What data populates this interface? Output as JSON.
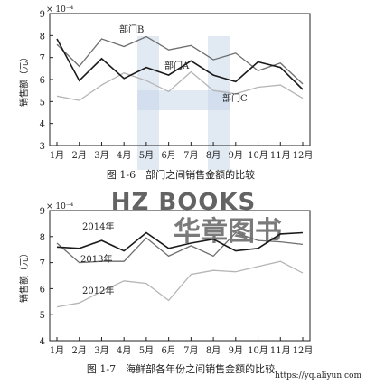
{
  "watermark": {
    "brand": "HZ BOOKS",
    "chinese": "华章图书",
    "url": "https://yq.aliyun.com"
  },
  "colors": {
    "dark": "#1a1a1a",
    "mid": "#6e6e6e",
    "light": "#b5b5b5",
    "watermark": "#c9d7ea"
  },
  "chart_data": [
    {
      "type": "line",
      "title": "图 1-6　部门之间销售金额的比较",
      "ylabel": "销售额（元）",
      "yexponent": "× 10⁻⁴",
      "ylim": [
        3,
        9
      ],
      "yticks": [
        "3",
        "4",
        "5",
        "6",
        "7",
        "8",
        "9"
      ],
      "categories": [
        "1月",
        "2月",
        "3月",
        "4月",
        "5月",
        "6月",
        "7月",
        "8月",
        "9月",
        "10月",
        "11月",
        "12月"
      ],
      "series": [
        {
          "name": "部门A",
          "color": "#1a1a1a",
          "values": [
            7.85,
            5.95,
            6.95,
            6.05,
            6.55,
            6.2,
            6.85,
            6.2,
            5.9,
            6.8,
            6.55,
            5.55
          ]
        },
        {
          "name": "部门B",
          "color": "#6e6e6e",
          "values": [
            7.6,
            6.6,
            7.85,
            7.5,
            7.95,
            7.35,
            7.55,
            6.9,
            7.2,
            6.4,
            6.75,
            5.8
          ]
        },
        {
          "name": "部门C",
          "color": "#b5b5b5",
          "values": [
            5.25,
            5.05,
            5.75,
            6.3,
            5.95,
            5.45,
            6.35,
            5.5,
            5.35,
            5.65,
            5.75,
            5.15
          ]
        }
      ],
      "annotations": [
        "部门B",
        "部门A",
        "部门C"
      ]
    },
    {
      "type": "line",
      "title": "图 1-7　海鲜部各年份之间销售金额的比较",
      "ylabel": "销售额（元）",
      "yexponent": "× 10⁻⁴",
      "ylim": [
        4,
        9
      ],
      "yticks": [
        "4",
        "5",
        "6",
        "7",
        "8",
        "9"
      ],
      "categories": [
        "1月",
        "2月",
        "3月",
        "4月",
        "5月",
        "6月",
        "7月",
        "8月",
        "9月",
        "10月",
        "11月",
        "12月"
      ],
      "series": [
        {
          "name": "2014年",
          "color": "#1a1a1a",
          "values": [
            7.6,
            7.55,
            7.85,
            7.45,
            8.15,
            7.55,
            7.75,
            7.9,
            7.45,
            7.55,
            8.1,
            8.15
          ]
        },
        {
          "name": "2013年",
          "color": "#6e6e6e",
          "values": [
            7.75,
            7.0,
            7.05,
            7.05,
            7.95,
            7.25,
            7.65,
            7.25,
            8.15,
            7.85,
            7.8,
            7.7
          ]
        },
        {
          "name": "2012年",
          "color": "#b5b5b5",
          "values": [
            5.3,
            5.45,
            5.9,
            6.3,
            6.2,
            5.55,
            6.55,
            6.7,
            6.65,
            6.85,
            7.05,
            6.6
          ]
        }
      ],
      "annotations": [
        "2014年",
        "2013年",
        "2012年"
      ]
    }
  ]
}
